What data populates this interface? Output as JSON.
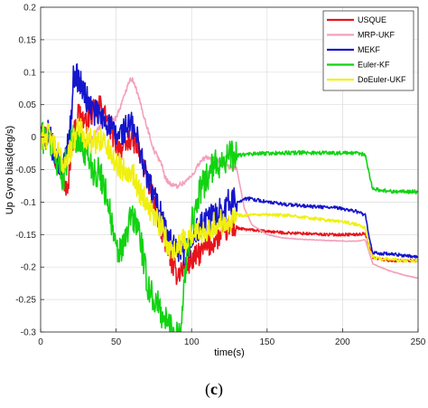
{
  "chart_data": {
    "type": "line",
    "xlabel": "time(s)",
    "ylabel": "Up Gyro bias(deg/s)",
    "xlim": [
      0,
      250
    ],
    "ylim": [
      -0.3,
      0.2
    ],
    "xticks": [
      0,
      50,
      100,
      150,
      200,
      250
    ],
    "yticks": [
      -0.3,
      -0.25,
      -0.2,
      -0.15,
      -0.1,
      -0.05,
      0,
      0.05,
      0.1,
      0.15,
      0.2
    ],
    "xtick_labels": [
      "0",
      "50",
      "100",
      "150",
      "200",
      "250"
    ],
    "ytick_labels": [
      "-0.3",
      "-0.25",
      "-0.2",
      "-0.15",
      "-0.1",
      "-0.05",
      "0",
      "0.05",
      "0.1",
      "0.15",
      "0.2"
    ],
    "grid": true,
    "legend_position": "top-right",
    "series": [
      {
        "name": "USQUE",
        "color": "#e8141b",
        "noise": 0.018,
        "points": [
          [
            0,
            0.0
          ],
          [
            5,
            0.005
          ],
          [
            10,
            -0.03
          ],
          [
            15,
            -0.06
          ],
          [
            18,
            -0.09
          ],
          [
            20,
            -0.02
          ],
          [
            25,
            0.04
          ],
          [
            30,
            0.02
          ],
          [
            35,
            0.04
          ],
          [
            40,
            0.05
          ],
          [
            45,
            0.02
          ],
          [
            50,
            -0.01
          ],
          [
            55,
            -0.02
          ],
          [
            60,
            0.0
          ],
          [
            65,
            -0.02
          ],
          [
            70,
            -0.06
          ],
          [
            75,
            -0.1
          ],
          [
            80,
            -0.14
          ],
          [
            85,
            -0.18
          ],
          [
            88,
            -0.2
          ],
          [
            90,
            -0.21
          ],
          [
            95,
            -0.2
          ],
          [
            100,
            -0.19
          ],
          [
            105,
            -0.18
          ],
          [
            110,
            -0.17
          ],
          [
            115,
            -0.16
          ],
          [
            120,
            -0.15
          ],
          [
            125,
            -0.14
          ],
          [
            130,
            -0.14
          ],
          [
            135,
            -0.142
          ],
          [
            140,
            -0.143
          ],
          [
            150,
            -0.145
          ],
          [
            160,
            -0.147
          ],
          [
            170,
            -0.148
          ],
          [
            180,
            -0.149
          ],
          [
            190,
            -0.15
          ],
          [
            200,
            -0.15
          ],
          [
            210,
            -0.15
          ],
          [
            215,
            -0.148
          ],
          [
            218,
            -0.17
          ],
          [
            220,
            -0.185
          ],
          [
            230,
            -0.19
          ],
          [
            240,
            -0.19
          ],
          [
            250,
            -0.19
          ]
        ]
      },
      {
        "name": "MRP-UKF",
        "color": "#f4a0bb",
        "noise": 0.004,
        "points": [
          [
            0,
            0.0
          ],
          [
            5,
            0.002
          ],
          [
            10,
            -0.02
          ],
          [
            15,
            -0.04
          ],
          [
            20,
            -0.02
          ],
          [
            25,
            0.0
          ],
          [
            30,
            -0.01
          ],
          [
            35,
            0.0
          ],
          [
            40,
            0.02
          ],
          [
            45,
            0.02
          ],
          [
            50,
            0.03
          ],
          [
            55,
            0.06
          ],
          [
            58,
            0.085
          ],
          [
            60,
            0.09
          ],
          [
            62,
            0.085
          ],
          [
            65,
            0.06
          ],
          [
            70,
            0.02
          ],
          [
            75,
            -0.02
          ],
          [
            80,
            -0.04
          ],
          [
            82,
            -0.06
          ],
          [
            85,
            -0.07
          ],
          [
            88,
            -0.075
          ],
          [
            90,
            -0.075
          ],
          [
            95,
            -0.07
          ],
          [
            100,
            -0.06
          ],
          [
            105,
            -0.04
          ],
          [
            110,
            -0.03
          ],
          [
            115,
            -0.035
          ],
          [
            120,
            -0.04
          ],
          [
            125,
            -0.045
          ],
          [
            130,
            -0.05
          ],
          [
            135,
            -0.11
          ],
          [
            140,
            -0.135
          ],
          [
            150,
            -0.15
          ],
          [
            160,
            -0.155
          ],
          [
            170,
            -0.157
          ],
          [
            180,
            -0.158
          ],
          [
            190,
            -0.159
          ],
          [
            200,
            -0.16
          ],
          [
            210,
            -0.16
          ],
          [
            215,
            -0.158
          ],
          [
            218,
            -0.18
          ],
          [
            220,
            -0.195
          ],
          [
            230,
            -0.205
          ],
          [
            240,
            -0.212
          ],
          [
            250,
            -0.217
          ]
        ]
      },
      {
        "name": "MEKF",
        "color": "#1515cc",
        "noise": 0.022,
        "points": [
          [
            0,
            0.0
          ],
          [
            5,
            0.005
          ],
          [
            10,
            -0.03
          ],
          [
            15,
            -0.05
          ],
          [
            20,
            0.02
          ],
          [
            22,
            0.1
          ],
          [
            25,
            0.09
          ],
          [
            30,
            0.06
          ],
          [
            35,
            0.04
          ],
          [
            40,
            0.03
          ],
          [
            45,
            0.02
          ],
          [
            50,
            0.0
          ],
          [
            55,
            0.01
          ],
          [
            60,
            0.02
          ],
          [
            65,
            -0.01
          ],
          [
            70,
            -0.06
          ],
          [
            75,
            -0.09
          ],
          [
            80,
            -0.12
          ],
          [
            85,
            -0.16
          ],
          [
            90,
            -0.18
          ],
          [
            95,
            -0.18
          ],
          [
            100,
            -0.16
          ],
          [
            105,
            -0.14
          ],
          [
            110,
            -0.13
          ],
          [
            115,
            -0.12
          ],
          [
            120,
            -0.11
          ],
          [
            125,
            -0.1
          ],
          [
            130,
            -0.1
          ],
          [
            135,
            -0.095
          ],
          [
            140,
            -0.095
          ],
          [
            150,
            -0.1
          ],
          [
            160,
            -0.103
          ],
          [
            170,
            -0.105
          ],
          [
            180,
            -0.107
          ],
          [
            190,
            -0.108
          ],
          [
            200,
            -0.11
          ],
          [
            210,
            -0.115
          ],
          [
            215,
            -0.12
          ],
          [
            218,
            -0.16
          ],
          [
            220,
            -0.178
          ],
          [
            230,
            -0.18
          ],
          [
            240,
            -0.182
          ],
          [
            250,
            -0.185
          ]
        ]
      },
      {
        "name": "Euler-KF",
        "color": "#12d312",
        "noise": 0.025,
        "points": [
          [
            0,
            0.0
          ],
          [
            5,
            0.0
          ],
          [
            10,
            -0.03
          ],
          [
            15,
            -0.06
          ],
          [
            20,
            0.0
          ],
          [
            25,
            -0.01
          ],
          [
            30,
            -0.02
          ],
          [
            35,
            -0.05
          ],
          [
            40,
            -0.06
          ],
          [
            45,
            -0.1
          ],
          [
            50,
            -0.18
          ],
          [
            55,
            -0.17
          ],
          [
            60,
            -0.12
          ],
          [
            65,
            -0.14
          ],
          [
            70,
            -0.22
          ],
          [
            75,
            -0.25
          ],
          [
            80,
            -0.27
          ],
          [
            85,
            -0.29
          ],
          [
            90,
            -0.3
          ],
          [
            93,
            -0.29
          ],
          [
            96,
            -0.2
          ],
          [
            100,
            -0.13
          ],
          [
            105,
            -0.09
          ],
          [
            110,
            -0.06
          ],
          [
            115,
            -0.045
          ],
          [
            120,
            -0.035
          ],
          [
            125,
            -0.03
          ],
          [
            130,
            -0.028
          ],
          [
            140,
            -0.026
          ],
          [
            150,
            -0.025
          ],
          [
            170,
            -0.024
          ],
          [
            190,
            -0.024
          ],
          [
            210,
            -0.025
          ],
          [
            215,
            -0.027
          ],
          [
            218,
            -0.06
          ],
          [
            220,
            -0.08
          ],
          [
            230,
            -0.083
          ],
          [
            240,
            -0.084
          ],
          [
            250,
            -0.084
          ]
        ]
      },
      {
        "name": "DoEuler-UKF",
        "color": "#f0f010",
        "noise": 0.02,
        "points": [
          [
            0,
            0.0
          ],
          [
            5,
            0.003
          ],
          [
            10,
            -0.02
          ],
          [
            15,
            -0.04
          ],
          [
            20,
            -0.02
          ],
          [
            25,
            0.02
          ],
          [
            30,
            0.0
          ],
          [
            35,
            -0.01
          ],
          [
            40,
            0.0
          ],
          [
            45,
            -0.02
          ],
          [
            50,
            -0.04
          ],
          [
            55,
            -0.05
          ],
          [
            60,
            -0.05
          ],
          [
            65,
            -0.08
          ],
          [
            70,
            -0.1
          ],
          [
            75,
            -0.12
          ],
          [
            80,
            -0.14
          ],
          [
            85,
            -0.17
          ],
          [
            90,
            -0.17
          ],
          [
            95,
            -0.16
          ],
          [
            100,
            -0.15
          ],
          [
            105,
            -0.145
          ],
          [
            110,
            -0.14
          ],
          [
            115,
            -0.135
          ],
          [
            120,
            -0.13
          ],
          [
            125,
            -0.125
          ],
          [
            130,
            -0.12
          ],
          [
            135,
            -0.12
          ],
          [
            140,
            -0.12
          ],
          [
            150,
            -0.12
          ],
          [
            160,
            -0.12
          ],
          [
            170,
            -0.122
          ],
          [
            180,
            -0.125
          ],
          [
            190,
            -0.128
          ],
          [
            200,
            -0.13
          ],
          [
            210,
            -0.135
          ],
          [
            215,
            -0.14
          ],
          [
            218,
            -0.175
          ],
          [
            220,
            -0.185
          ],
          [
            230,
            -0.188
          ],
          [
            240,
            -0.19
          ],
          [
            250,
            -0.19
          ]
        ]
      }
    ]
  },
  "caption": {
    "open": "(",
    "letter": "c",
    "close": ")"
  }
}
